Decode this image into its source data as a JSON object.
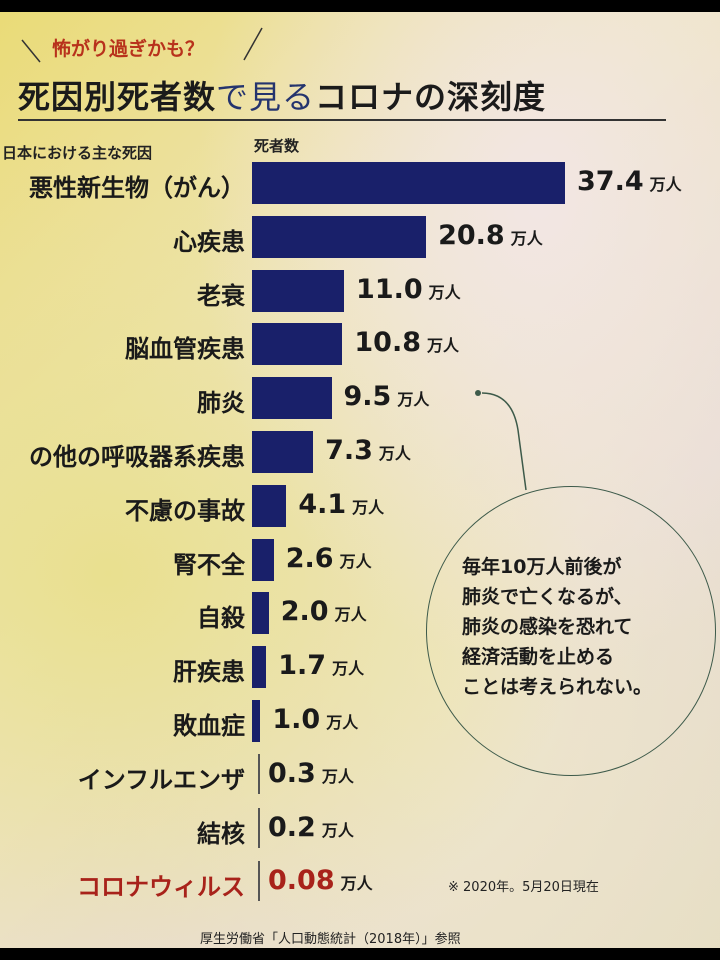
{
  "kicker": "怖がり過ぎかも？",
  "title": {
    "part1": "死因別死者数",
    "part2": "で見る",
    "part3": "コロナの深刻度"
  },
  "colors": {
    "bar": "#19206a",
    "highlight": "#a8221a"
  },
  "chart_data": {
    "type": "bar",
    "orientation": "horizontal",
    "category_header": "日本における主な死因",
    "value_header": "死者数",
    "unit": "万人",
    "categories": [
      "悪性新生物（がん）",
      "心疾患",
      "老衰",
      "脳血管疾患",
      "肺炎",
      "の他の呼吸器系疾患",
      "不慮の事故",
      "腎不全",
      "自殺",
      "肝疾患",
      "敗血症",
      "インフルエンザ",
      "結核",
      "コロナウィルス"
    ],
    "values": [
      37.4,
      20.8,
      11.0,
      10.8,
      9.5,
      7.3,
      4.1,
      2.6,
      2.0,
      1.7,
      1.0,
      0.3,
      0.2,
      0.08
    ],
    "value_labels": [
      "37.4",
      "20.8",
      "11.0",
      "10.8",
      "9.5",
      "7.3",
      "4.1",
      "2.6",
      "2.0",
      "1.7",
      "1.0",
      "0.3",
      "0.2",
      "0.08"
    ],
    "highlighted": "コロナウィルス"
  },
  "callout": {
    "lines": [
      "毎年10万人前後が",
      "肺炎で亡くなるが、",
      "肺炎の感染を恐れて",
      "経済活動を止める",
      "ことは考えられない。"
    ]
  },
  "as_of": "※ 2020年。5月20日現在",
  "source": "厚生労働省「人口動態統計（2018年）」参照"
}
